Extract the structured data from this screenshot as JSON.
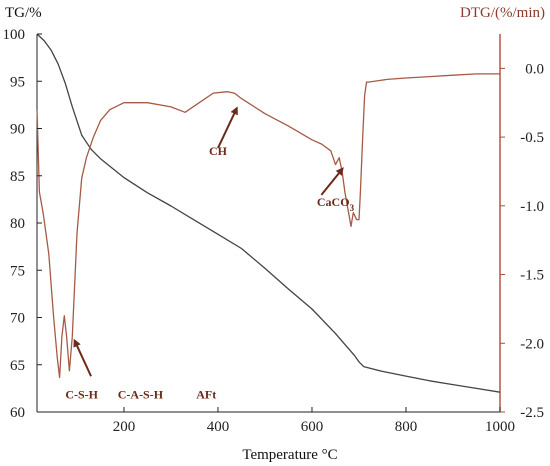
{
  "chart_data": {
    "type": "line",
    "xlabel": "Temperature °C",
    "ylabel_left": "TG/%",
    "ylabel_right": "DTG/(%/min)",
    "xlim": [
      15,
      1000
    ],
    "ylim_left": [
      60,
      100
    ],
    "ylim_right": [
      -2.5,
      0.25
    ],
    "x_ticks": [
      200,
      400,
      600,
      800,
      1000
    ],
    "y_ticks_left": [
      60,
      65,
      70,
      75,
      80,
      85,
      90,
      95,
      100
    ],
    "y_ticks_right": [
      0.0,
      -0.5,
      -1.0,
      -1.5,
      -2.0,
      -2.5
    ],
    "y_tick_labels_right": [
      "0.0",
      "-0.5",
      "-1.0",
      "-1.5",
      "-2.0",
      "-2.5"
    ],
    "grid": false,
    "series": [
      {
        "name": "TG",
        "axis": "left",
        "x": [
          15,
          30,
          45,
          60,
          75,
          90,
          110,
          130,
          150,
          200,
          250,
          300,
          350,
          400,
          450,
          500,
          550,
          600,
          650,
          690,
          700,
          710,
          750,
          800,
          850,
          900,
          950,
          1000
        ],
        "y": [
          100,
          99.3,
          98.3,
          96.8,
          94.8,
          92.3,
          89.3,
          87.8,
          86.8,
          84.8,
          83.2,
          81.8,
          80.3,
          78.8,
          77.3,
          75.2,
          73.0,
          70.9,
          68.3,
          66.0,
          65.3,
          64.8,
          64.3,
          63.8,
          63.3,
          62.9,
          62.5,
          62.1
        ]
      },
      {
        "name": "DTG",
        "axis": "right",
        "x": [
          15,
          20,
          28,
          40,
          50,
          58,
          63,
          68,
          73,
          78,
          84,
          90,
          100,
          110,
          120,
          135,
          150,
          170,
          200,
          250,
          300,
          330,
          360,
          390,
          420,
          435,
          450,
          500,
          550,
          600,
          620,
          640,
          650,
          658,
          664,
          670,
          678,
          683,
          688,
          695,
          700,
          703,
          708,
          712,
          716,
          720,
          760,
          800,
          850,
          900,
          950,
          1000
        ],
        "y": [
          -0.3,
          -0.9,
          -1.05,
          -1.35,
          -1.8,
          -2.1,
          -2.25,
          -1.95,
          -1.8,
          -1.95,
          -2.2,
          -1.95,
          -1.2,
          -0.8,
          -0.65,
          -0.5,
          -0.38,
          -0.3,
          -0.25,
          -0.25,
          -0.28,
          -0.32,
          -0.25,
          -0.18,
          -0.17,
          -0.18,
          -0.22,
          -0.33,
          -0.42,
          -0.52,
          -0.55,
          -0.6,
          -0.7,
          -0.65,
          -0.75,
          -0.9,
          -1.05,
          -1.15,
          -1.05,
          -1.1,
          -1.1,
          -0.9,
          -0.5,
          -0.2,
          -0.1,
          -0.1,
          -0.08,
          -0.07,
          -0.06,
          -0.05,
          -0.04,
          -0.04
        ]
      }
    ],
    "annotations": [
      {
        "text": "CH",
        "x": 400,
        "y": -0.63
      },
      {
        "text": "CaCO",
        "subscript": "3",
        "x": 650,
        "y": -1.0
      },
      {
        "text": "C-S-H",
        "x": 110,
        "y": -2.4
      },
      {
        "text": "C-A-S-H",
        "x": 235,
        "y": -2.4
      },
      {
        "text": "AFt",
        "x": 375,
        "y": -2.4
      }
    ],
    "arrows": [
      {
        "from_x": 400,
        "from_y": -0.58,
        "to_x": 440,
        "to_y": -0.29
      },
      {
        "from_x": 620,
        "from_y": -0.92,
        "to_x": 665,
        "to_y": -0.73
      },
      {
        "from_x": 130,
        "from_y": -2.24,
        "to_x": 95,
        "to_y": -1.98
      }
    ],
    "colors": {
      "tg_line": "#444444",
      "dtg_line": "#a65a45",
      "right_axis": "#b04a3a",
      "right_text": "#8b3a2b",
      "annotation": "#6b2a1a",
      "arrow": "#6b2a1a"
    }
  }
}
